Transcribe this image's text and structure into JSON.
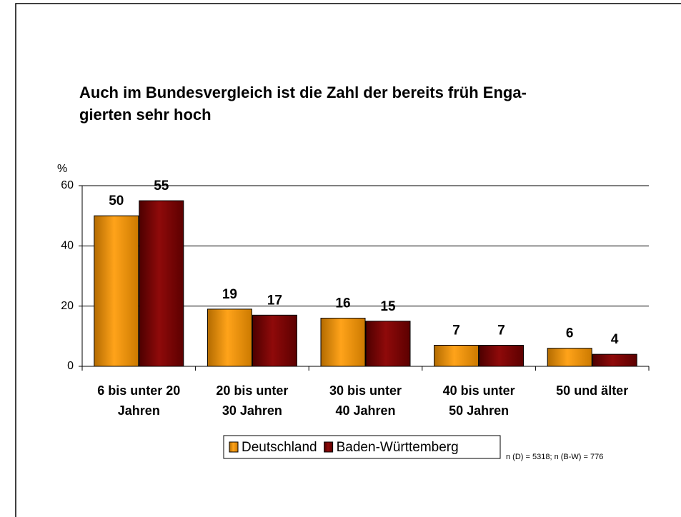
{
  "chart_data": {
    "type": "bar",
    "title": [
      "Auch im Bundesvergleich ist die Zahl der bereits früh Enga-",
      "gierten sehr hoch"
    ],
    "y_label": "%",
    "categories": [
      [
        "6 bis unter 20",
        "Jahren"
      ],
      [
        "20 bis unter",
        "30 Jahren"
      ],
      [
        "30 bis unter",
        "40 Jahren"
      ],
      [
        "40 bis unter",
        "50 Jahren"
      ],
      [
        "50 und älter"
      ]
    ],
    "series": [
      {
        "name": "Deutschland",
        "color": "#ff9900",
        "values": [
          50,
          19,
          16,
          7,
          6
        ]
      },
      {
        "name": "Baden-Württemberg",
        "color": "#800000",
        "values": [
          55,
          17,
          15,
          7,
          4
        ]
      }
    ],
    "ylim": [
      0,
      60
    ],
    "yticks": [
      0,
      20,
      40,
      60
    ],
    "grid": true,
    "legend": "bottom",
    "note": "n (D) = 5318; n (B-W) = 776"
  }
}
